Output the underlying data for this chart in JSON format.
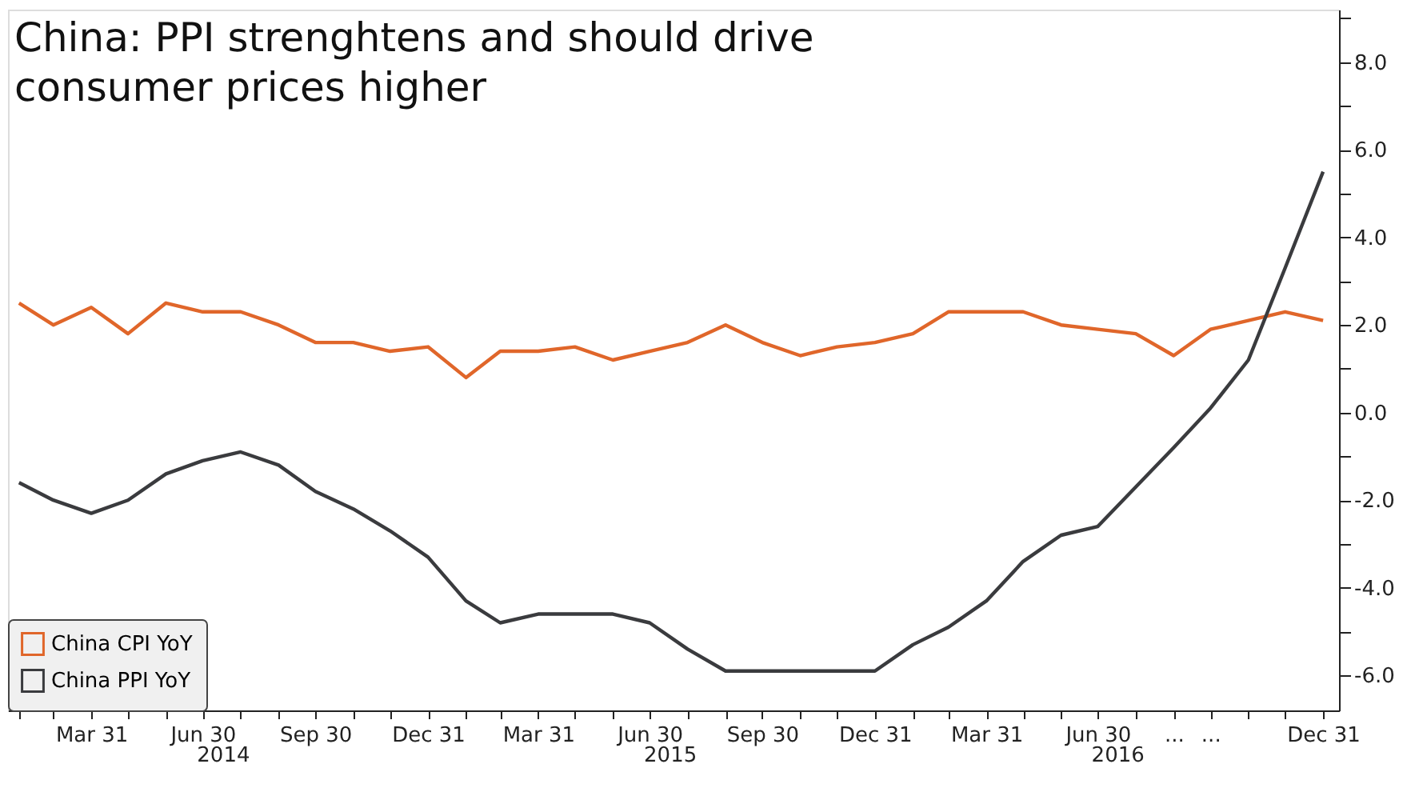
{
  "chart_data": {
    "type": "line",
    "title": "China: PPI strenghtens and should drive consumer prices higher",
    "x": [
      "2014-01-31",
      "2014-02-28",
      "2014-03-31",
      "2014-04-30",
      "2014-05-31",
      "2014-06-30",
      "2014-07-31",
      "2014-08-31",
      "2014-09-30",
      "2014-10-31",
      "2014-11-30",
      "2014-12-31",
      "2015-01-31",
      "2015-02-28",
      "2015-03-31",
      "2015-04-30",
      "2015-05-31",
      "2015-06-30",
      "2015-07-31",
      "2015-08-31",
      "2015-09-30",
      "2015-10-31",
      "2015-11-30",
      "2015-12-31",
      "2016-01-31",
      "2016-02-29",
      "2016-03-31",
      "2016-04-30",
      "2016-05-31",
      "2016-06-30",
      "2016-07-31",
      "2016-08-31",
      "2016-09-30",
      "2016-10-31",
      "2016-11-30",
      "2016-12-31"
    ],
    "series": [
      {
        "name": "China CPI YoY",
        "color": "#e0662a",
        "values": [
          2.5,
          2.0,
          2.4,
          1.8,
          2.5,
          2.3,
          2.3,
          2.0,
          1.6,
          1.6,
          1.4,
          1.5,
          0.8,
          1.4,
          1.4,
          1.5,
          1.2,
          1.4,
          1.6,
          2.0,
          1.6,
          1.3,
          1.5,
          1.6,
          1.8,
          2.3,
          2.3,
          2.3,
          2.0,
          1.9,
          1.8,
          1.3,
          1.9,
          2.1,
          2.3,
          2.1
        ]
      },
      {
        "name": "China PPI YoY",
        "color": "#3a3b3e",
        "values": [
          -1.6,
          -2.0,
          -2.3,
          -2.0,
          -1.4,
          -1.1,
          -0.9,
          -1.2,
          -1.8,
          -2.2,
          -2.7,
          -3.3,
          -4.3,
          -4.8,
          -4.6,
          -4.6,
          -4.6,
          -4.8,
          -5.4,
          -5.9,
          -5.9,
          -5.9,
          -5.9,
          -5.9,
          -5.3,
          -4.9,
          -4.3,
          -3.4,
          -2.8,
          -2.6,
          -1.7,
          -0.8,
          0.1,
          1.2,
          3.3,
          5.5
        ]
      }
    ],
    "xlim": [
      "2014-01-22",
      "2017-01-13"
    ],
    "xticks": [
      {
        "value": "2014-01-31",
        "label": null
      },
      {
        "value": "2014-02-28",
        "label": null
      },
      {
        "value": "2014-03-31",
        "label": "Mar 31"
      },
      {
        "value": "2014-04-30",
        "label": null
      },
      {
        "value": "2014-05-31",
        "label": null
      },
      {
        "value": "2014-06-30",
        "label": "Jun 30"
      },
      {
        "value": "2014-07-31",
        "label": null
      },
      {
        "value": "2014-08-31",
        "label": null
      },
      {
        "value": "2014-09-30",
        "label": "Sep 30"
      },
      {
        "value": "2014-10-31",
        "label": null
      },
      {
        "value": "2014-11-30",
        "label": null
      },
      {
        "value": "2014-12-31",
        "label": "Dec 31"
      },
      {
        "value": "2015-01-31",
        "label": null
      },
      {
        "value": "2015-02-28",
        "label": null
      },
      {
        "value": "2015-03-31",
        "label": "Mar 31"
      },
      {
        "value": "2015-04-30",
        "label": null
      },
      {
        "value": "2015-05-31",
        "label": null
      },
      {
        "value": "2015-06-30",
        "label": "Jun 30"
      },
      {
        "value": "2015-07-31",
        "label": null
      },
      {
        "value": "2015-08-31",
        "label": null
      },
      {
        "value": "2015-09-30",
        "label": "Sep 30"
      },
      {
        "value": "2015-10-31",
        "label": null
      },
      {
        "value": "2015-11-30",
        "label": null
      },
      {
        "value": "2015-12-31",
        "label": "Dec 31"
      },
      {
        "value": "2016-01-31",
        "label": null
      },
      {
        "value": "2016-02-29",
        "label": null
      },
      {
        "value": "2016-03-31",
        "label": "Mar 31"
      },
      {
        "value": "2016-04-30",
        "label": null
      },
      {
        "value": "2016-05-31",
        "label": null
      },
      {
        "value": "2016-06-30",
        "label": "Jun 30"
      },
      {
        "value": "2016-07-31",
        "label": null
      },
      {
        "value": "2016-08-31",
        "label": "..."
      },
      {
        "value": "2016-09-30",
        "label": "..."
      },
      {
        "value": "2016-10-31",
        "label": null
      },
      {
        "value": "2016-11-30",
        "label": null
      },
      {
        "value": "2016-12-31",
        "label": "Dec 31"
      }
    ],
    "ylim": [
      -6.8,
      9.2
    ],
    "yticks": [
      {
        "value": -6,
        "label": "-6.0"
      },
      {
        "value": -5,
        "label": null
      },
      {
        "value": -4,
        "label": "-4.0"
      },
      {
        "value": -3,
        "label": null
      },
      {
        "value": -2,
        "label": "-2.0"
      },
      {
        "value": -1,
        "label": null
      },
      {
        "value": 0,
        "label": "0.0"
      },
      {
        "value": 1,
        "label": null
      },
      {
        "value": 2,
        "label": "2.0"
      },
      {
        "value": 3,
        "label": null
      },
      {
        "value": 4,
        "label": "4.0"
      },
      {
        "value": 5,
        "label": null
      },
      {
        "value": 6,
        "label": "6.0"
      },
      {
        "value": 7,
        "label": null
      },
      {
        "value": 8,
        "label": "8.0"
      },
      {
        "value": 9,
        "label": null
      }
    ],
    "annotations": [
      "2014",
      "2015",
      "2016"
    ],
    "grid": false,
    "legend": "bottom left",
    "marker": "none",
    "line_style": "solid"
  }
}
